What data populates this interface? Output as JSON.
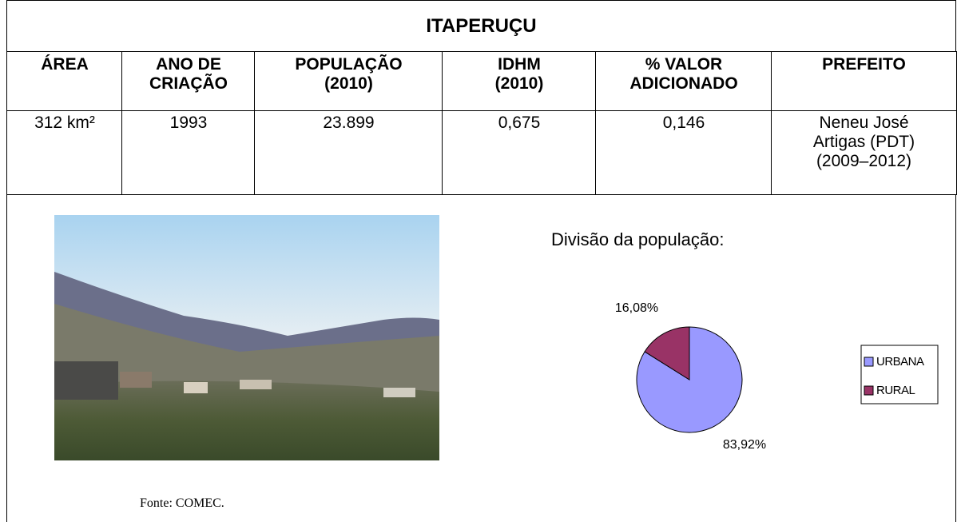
{
  "table": {
    "title": "ITAPERUÇU",
    "headers": [
      "ÁREA",
      "ANO DE\nCRIAÇÃO",
      "POPULAÇÃO\n(2010)",
      "IDHM\n(2010)",
      "% VALOR\nADICIONADO",
      "PREFEITO"
    ],
    "rows": [
      [
        "312 km²",
        "1993",
        "23.899",
        "0,675",
        "0,146",
        "Neneu José\nArtigas (PDT)\n(2009–2012)"
      ]
    ]
  },
  "photo": {
    "caption": "Fonte: COMEC."
  },
  "chart_data": {
    "type": "pie",
    "title": "Divisão da população:",
    "categories": [
      "URBANA",
      "RURAL"
    ],
    "values": [
      83.92,
      16.08
    ],
    "value_labels": [
      "83,92%",
      "16,08%"
    ],
    "colors": [
      "#9999ff",
      "#993366"
    ],
    "legend": "right"
  }
}
